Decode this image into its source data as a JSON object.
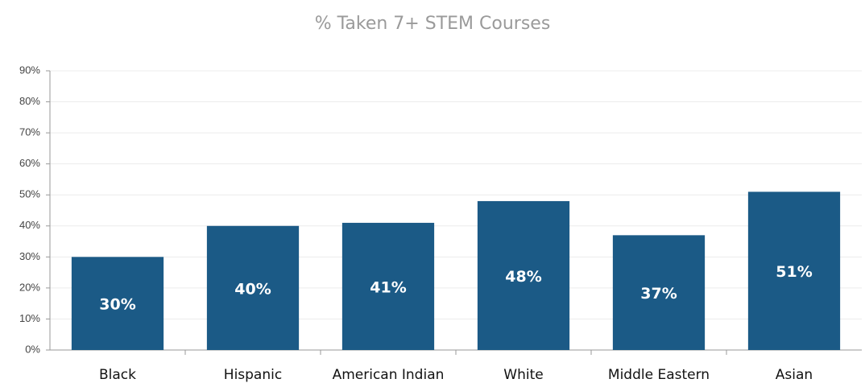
{
  "chart_data": {
    "type": "bar",
    "title": "% Taken 7+ STEM Courses",
    "categories": [
      "Black",
      "Hispanic",
      "American Indian",
      "White",
      "Middle Eastern",
      "Asian"
    ],
    "values": [
      30,
      40,
      41,
      48,
      37,
      51
    ],
    "value_labels": [
      "30%",
      "40%",
      "41%",
      "48%",
      "37%",
      "51%"
    ],
    "color": "#1b5a86",
    "ylim": [
      0,
      90
    ],
    "yticks": [
      {
        "value": 0,
        "label": "0%"
      },
      {
        "value": 10,
        "label": "10%"
      },
      {
        "value": 20,
        "label": "20%"
      },
      {
        "value": 30,
        "label": "30%"
      },
      {
        "value": 40,
        "label": "40%"
      },
      {
        "value": 50,
        "label": "50%"
      },
      {
        "value": 60,
        "label": "60%"
      },
      {
        "value": 70,
        "label": "70%"
      },
      {
        "value": 80,
        "label": "80%"
      },
      {
        "value": 90,
        "label": "90%"
      }
    ],
    "grid": true
  }
}
